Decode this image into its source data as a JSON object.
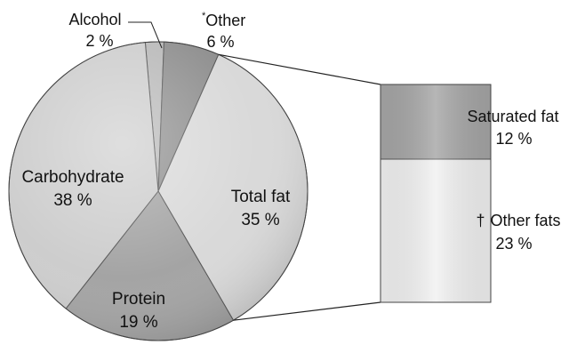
{
  "chart_data": {
    "type": "pie",
    "title": "",
    "slices": [
      {
        "label": "Alcohol",
        "value": 2,
        "value_text": "2 %",
        "color": "#b9b9b9"
      },
      {
        "label": "Other",
        "marker": "*",
        "value": 6,
        "value_text": "6 %",
        "color": "#8f8f8f"
      },
      {
        "label": "Total fat",
        "value": 35,
        "value_text": "35 %",
        "color": "#d9d9d9"
      },
      {
        "label": "Protein",
        "value": 19,
        "value_text": "19 %",
        "color": "#a4a4a4"
      },
      {
        "label": "Carbohydrate",
        "value": 38,
        "value_text": "38 %",
        "color": "#cdcdcd"
      }
    ],
    "breakdown": {
      "of": "Total fat",
      "parts": [
        {
          "label": "Saturated fat",
          "value": 12,
          "value_text": "12 %",
          "color": "#a6a6a6"
        },
        {
          "label": "Other fats",
          "marker": "†",
          "value": 23,
          "value_text": "23 %",
          "color": "#f1f1f1"
        }
      ]
    }
  }
}
